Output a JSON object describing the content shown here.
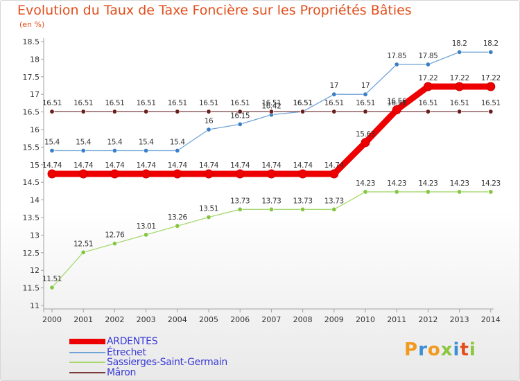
{
  "header": {
    "title": "Evolution du Taux de Taxe Foncière sur les Propriétés Bâties",
    "subtitle": "(en %)"
  },
  "brand": {
    "logo_letters": [
      "P",
      "r",
      "o",
      "x",
      "i",
      "t",
      "i"
    ],
    "logo_colors": [
      "#f29a1f",
      "#3a8fd6",
      "#f29a1f",
      "#8cc63f",
      "#3a8fd6",
      "#e24e1b",
      "#8cc63f"
    ]
  },
  "chart_data": {
    "type": "line",
    "title": "Evolution du Taux de Taxe Foncière sur les Propriétés Bâties",
    "ylabel": "(en %)",
    "x": [
      "2000",
      "2001",
      "2002",
      "2003",
      "2004",
      "2005",
      "2006",
      "2007",
      "2008",
      "2009",
      "2010",
      "2011",
      "2012",
      "2013",
      "2014"
    ],
    "ylim": [
      11,
      18.5
    ],
    "yticks": [
      "11",
      "11.5",
      "12",
      "12.5",
      "13",
      "13.5",
      "14",
      "14.5",
      "15",
      "15.5",
      "16",
      "16.5",
      "17",
      "17.5",
      "18",
      "18.5"
    ],
    "series": [
      {
        "name": "ARDENTES",
        "color": "#ee0000",
        "marker": "#dd0000",
        "bold": true,
        "values": [
          14.74,
          14.74,
          14.74,
          14.74,
          14.74,
          14.74,
          14.74,
          14.74,
          14.74,
          14.74,
          15.63,
          16.56,
          17.22,
          17.22,
          17.22
        ],
        "labels": [
          "14.74",
          "14.74",
          "14.74",
          "14.74",
          "14.74",
          "14.74",
          "14.74",
          "14.74",
          "14.74",
          "14.74",
          "15.63",
          "16.56",
          "17.22",
          "17.22",
          "17.22"
        ]
      },
      {
        "name": "Étrechet",
        "color": "#6fa3d6",
        "marker": "#3a7fc6",
        "bold": false,
        "values": [
          15.4,
          15.4,
          15.4,
          15.4,
          15.4,
          16,
          16.15,
          16.42,
          16.51,
          17,
          17,
          17.85,
          17.85,
          18.2,
          18.2
        ],
        "labels": [
          "15.4",
          "15.4",
          "15.4",
          "15.4",
          "15.4",
          "16",
          "16.15",
          "16.42",
          "16.51",
          "17",
          "17",
          "17.85",
          "17.85",
          "18.2",
          "18.2"
        ]
      },
      {
        "name": "Sassierges-Saint-Germain",
        "color": "#a6d86e",
        "marker": "#84c641",
        "bold": false,
        "values": [
          11.51,
          12.51,
          12.76,
          13.01,
          13.26,
          13.51,
          13.73,
          13.73,
          13.73,
          13.73,
          14.23,
          14.23,
          14.23,
          14.23,
          14.23
        ],
        "labels": [
          "11.51",
          "12.51",
          "12.76",
          "13.01",
          "13.26",
          "13.51",
          "13.73",
          "13.73",
          "13.73",
          "13.73",
          "14.23",
          "14.23",
          "14.23",
          "14.23",
          "14.23"
        ]
      },
      {
        "name": "Mâron",
        "color": "#7a3b3b",
        "marker": "#6a1f1f",
        "bold": false,
        "values": [
          16.51,
          16.51,
          16.51,
          16.51,
          16.51,
          16.51,
          16.51,
          16.51,
          16.51,
          16.51,
          16.51,
          16.51,
          16.51,
          16.51,
          16.51
        ],
        "labels": [
          "16.51",
          "16.51",
          "16.51",
          "16.51",
          "16.51",
          "16.51",
          "16.51",
          "16.51",
          "16.51",
          "16.51",
          "16.51",
          "16.51",
          "16.51",
          "16.51",
          "16.51"
        ]
      }
    ],
    "legend": [
      "ARDENTES",
      "Étrechet",
      "Sassierges-Saint-Germain",
      "Mâron"
    ],
    "grid": false,
    "legend_position": "bottom-left"
  }
}
